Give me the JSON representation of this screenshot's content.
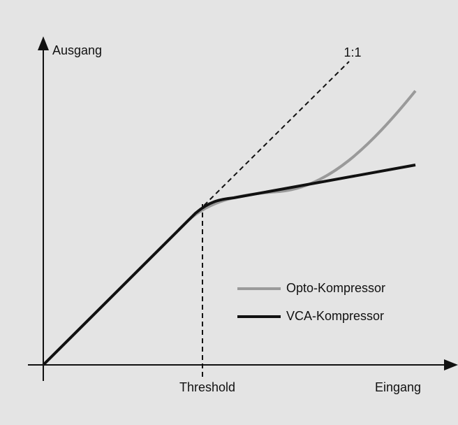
{
  "diagram": {
    "y_axis_label": "Ausgang",
    "x_axis_label": "Eingang",
    "threshold_label": "Threshold",
    "ratio_label": "1:1",
    "legend": [
      "Opto-Kompressor",
      "VCA-Kompressor"
    ]
  }
}
